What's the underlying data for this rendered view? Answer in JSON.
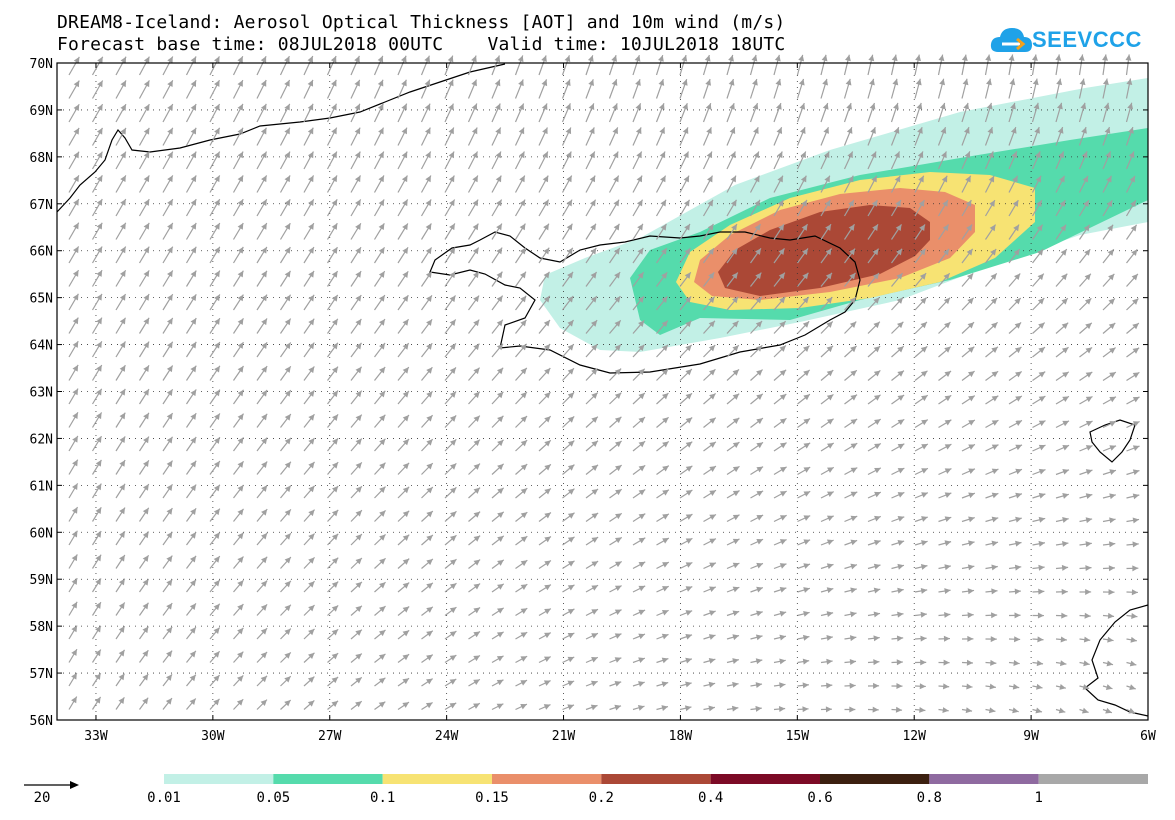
{
  "title": {
    "line1": "DREAM8-Iceland: Aerosol Optical Thickness [AOT] and 10m wind (m/s)",
    "line2": "Forecast base time: 08JUL2018 00UTC    Valid time: 10JUL2018 18UTC"
  },
  "logo": {
    "text": "SEEVCCC",
    "icon": "cloud-logo-icon",
    "color": "#1fa2e8"
  },
  "map": {
    "lat_range": [
      56,
      70
    ],
    "lon_range": [
      -34,
      -6
    ],
    "lat_ticks": [
      {
        "value": 70,
        "label": "70N"
      },
      {
        "value": 69,
        "label": "69N"
      },
      {
        "value": 68,
        "label": "68N"
      },
      {
        "value": 67,
        "label": "67N"
      },
      {
        "value": 66,
        "label": "66N"
      },
      {
        "value": 65,
        "label": "65N"
      },
      {
        "value": 64,
        "label": "64N"
      },
      {
        "value": 63,
        "label": "63N"
      },
      {
        "value": 62,
        "label": "62N"
      },
      {
        "value": 61,
        "label": "61N"
      },
      {
        "value": 60,
        "label": "60N"
      },
      {
        "value": 59,
        "label": "59N"
      },
      {
        "value": 58,
        "label": "58N"
      },
      {
        "value": 57,
        "label": "57N"
      },
      {
        "value": 56,
        "label": "56N"
      }
    ],
    "lon_ticks": [
      {
        "value": -33,
        "label": "33W"
      },
      {
        "value": -30,
        "label": "30W"
      },
      {
        "value": -27,
        "label": "27W"
      },
      {
        "value": -24,
        "label": "24W"
      },
      {
        "value": -21,
        "label": "21W"
      },
      {
        "value": -18,
        "label": "18W"
      },
      {
        "value": -15,
        "label": "15W"
      },
      {
        "value": -12,
        "label": "12W"
      },
      {
        "value": -9,
        "label": "9W"
      },
      {
        "value": -6,
        "label": "6W"
      }
    ],
    "grid": "dotted",
    "wind_arrow_color": "#a0a0a0"
  },
  "wind_reference": {
    "label": "20"
  },
  "colorbar": {
    "labels": [
      "0.01",
      "0.05",
      "0.1",
      "0.15",
      "0.2",
      "0.4",
      "0.6",
      "0.8",
      "1"
    ],
    "colors": [
      "#c2f0e6",
      "#55dbac",
      "#f7e373",
      "#ea8f6a",
      "#ab4836",
      "#7c0a26",
      "#3c2010",
      "#8f6aa0",
      "#a8a8a8"
    ]
  }
}
